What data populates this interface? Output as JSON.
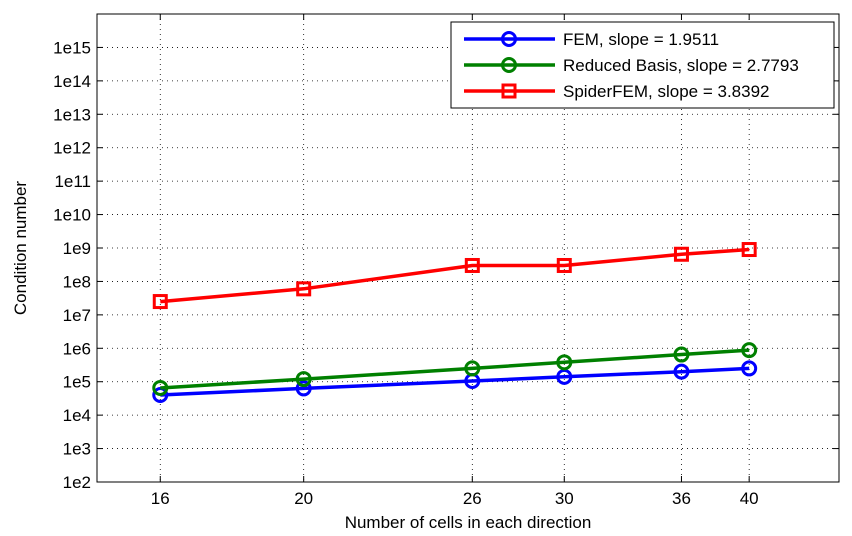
{
  "chart_data": {
    "type": "line",
    "title": "",
    "xlabel": "Number of cells in each direction",
    "ylabel": "Condition number",
    "x_scale": "log",
    "y_scale": "log",
    "xlim": [
      14.5,
      46
    ],
    "ylim": [
      100,
      10000000000000000
    ],
    "x_ticks": [
      16,
      20,
      26,
      30,
      36,
      40
    ],
    "x_tick_labels": [
      "16",
      "20",
      "26",
      "30",
      "36",
      "40"
    ],
    "y_ticks": [
      100,
      1000,
      10000,
      100000,
      1000000,
      10000000,
      100000000,
      1000000000,
      10000000000,
      100000000000,
      1000000000000,
      10000000000000,
      100000000000000,
      1000000000000000
    ],
    "y_tick_labels": [
      "1e2",
      "1e3",
      "1e4",
      "1e5",
      "1e6",
      "1e7",
      "1e8",
      "1e9",
      "1e10",
      "1e11",
      "1e12",
      "1e13",
      "1e14",
      "1e15"
    ],
    "grid": true,
    "legend_position": "top-right",
    "x": [
      16,
      20,
      26,
      30,
      36,
      40
    ],
    "series": [
      {
        "name": "FEM, slope = 1.9511",
        "color": "#0000ff",
        "marker": "circle",
        "values": [
          40000,
          63000,
          105000,
          140000,
          200000,
          250000
        ]
      },
      {
        "name": "Reduced Basis, slope = 2.7793",
        "color": "#008000",
        "marker": "circle",
        "values": [
          65000,
          120000,
          250000,
          380000,
          650000,
          880000
        ]
      },
      {
        "name": "SpiderFEM, slope = 3.8392",
        "color": "#ff0000",
        "marker": "square",
        "values": [
          25000000,
          60000000,
          300000000,
          300000000,
          650000000,
          900000000
        ]
      }
    ]
  }
}
